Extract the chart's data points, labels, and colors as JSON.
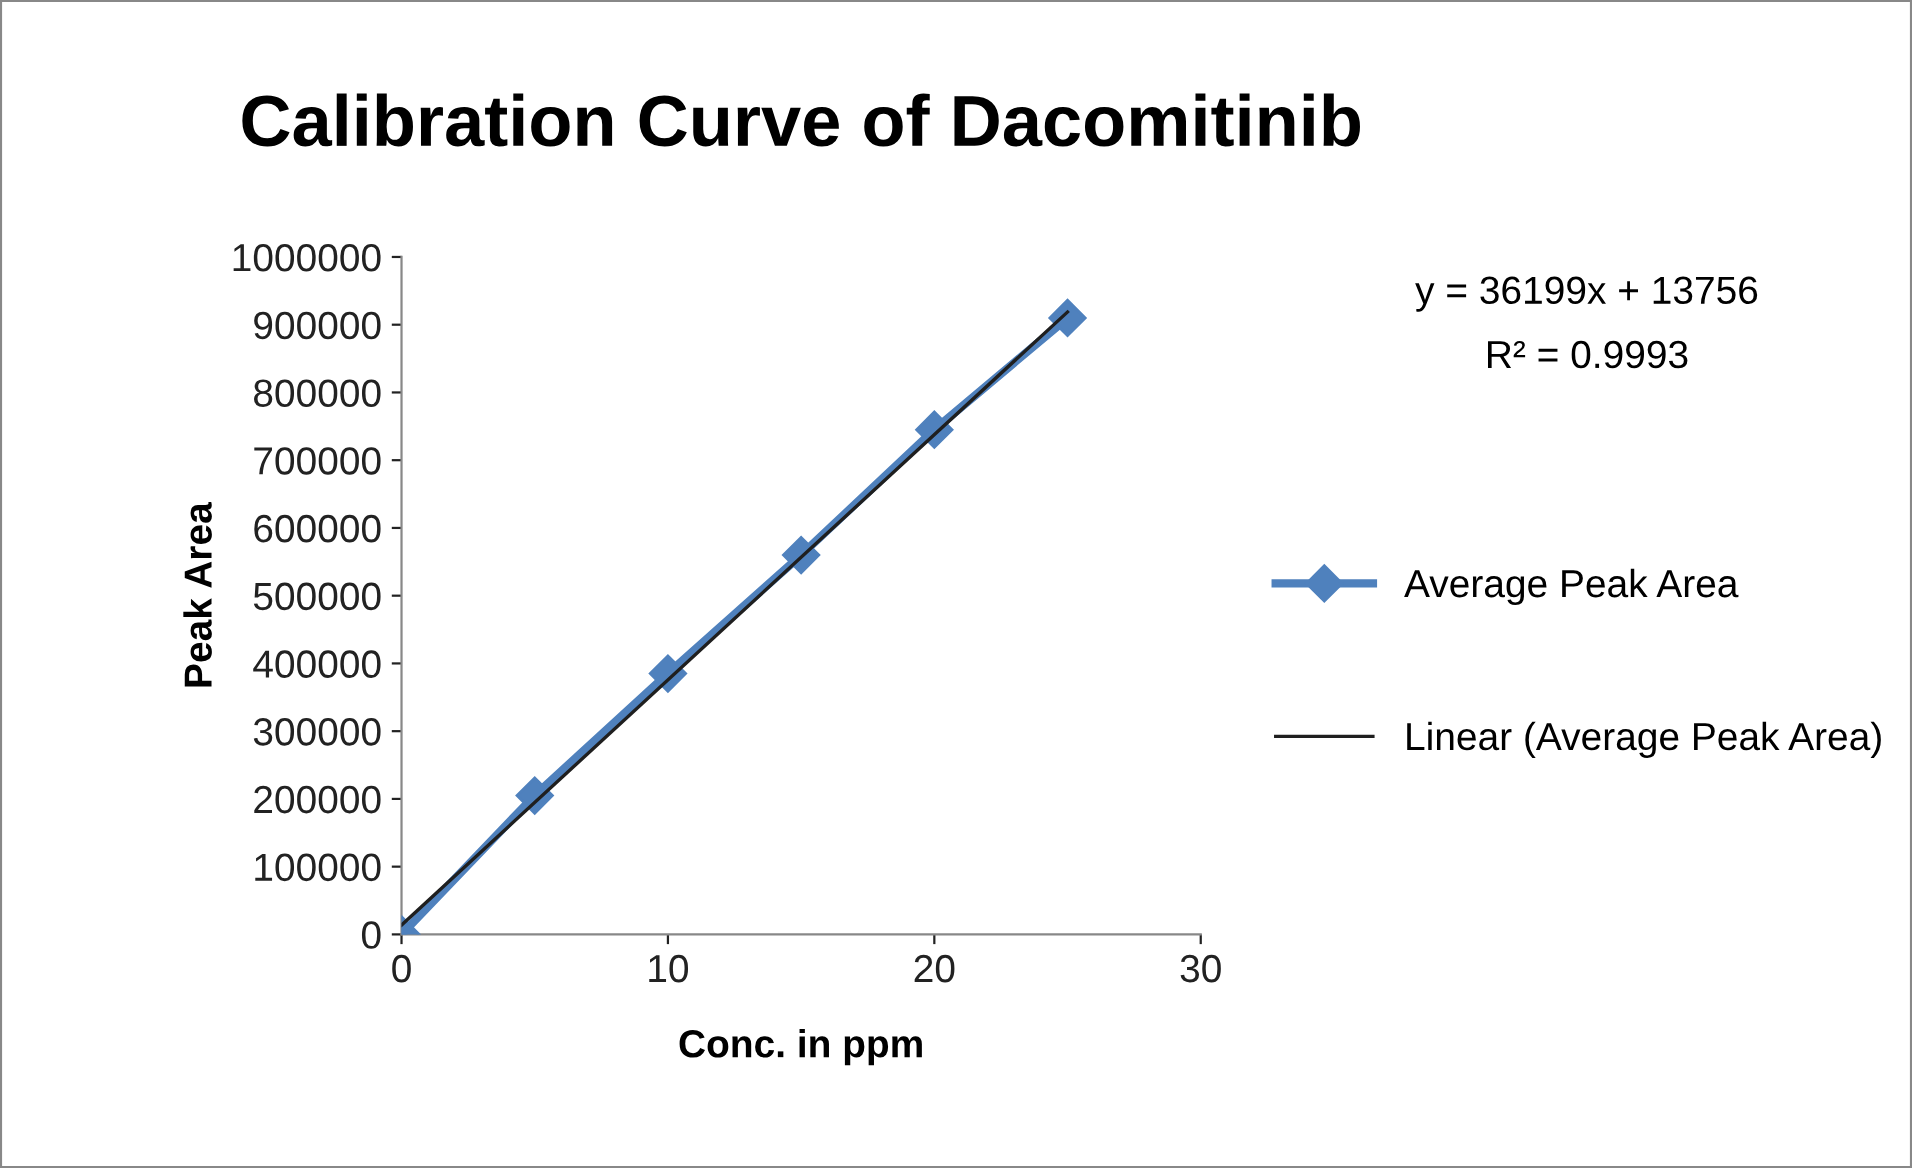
{
  "chart_data": {
    "type": "line",
    "title": "Calibration Curve of Dacomitinib",
    "xlabel": "Conc. in ppm",
    "ylabel": "Peak Area",
    "x": [
      0,
      5,
      10,
      15,
      20,
      25
    ],
    "series": [
      {
        "name": "Average Peak Area",
        "color": "#4f81bd",
        "values": [
          0,
          205000,
          385000,
          560000,
          745000,
          910000
        ],
        "marker": "diamond"
      },
      {
        "name": "Linear (Average Peak Area)",
        "color": "#1f1f1f",
        "x": [
          0,
          25
        ],
        "values": [
          13756,
          918731
        ],
        "marker": "none"
      }
    ],
    "xlim": [
      0,
      30
    ],
    "xticks": [
      0,
      10,
      20,
      30
    ],
    "ylim": [
      0,
      1000000
    ],
    "yticks": [
      0,
      100000,
      200000,
      300000,
      400000,
      500000,
      600000,
      700000,
      800000,
      900000,
      1000000
    ],
    "annotations": [
      "y = 36199x + 13756",
      "R² = 0.9993"
    ],
    "grid": false,
    "legend": "right",
    "line_style": "solid"
  }
}
